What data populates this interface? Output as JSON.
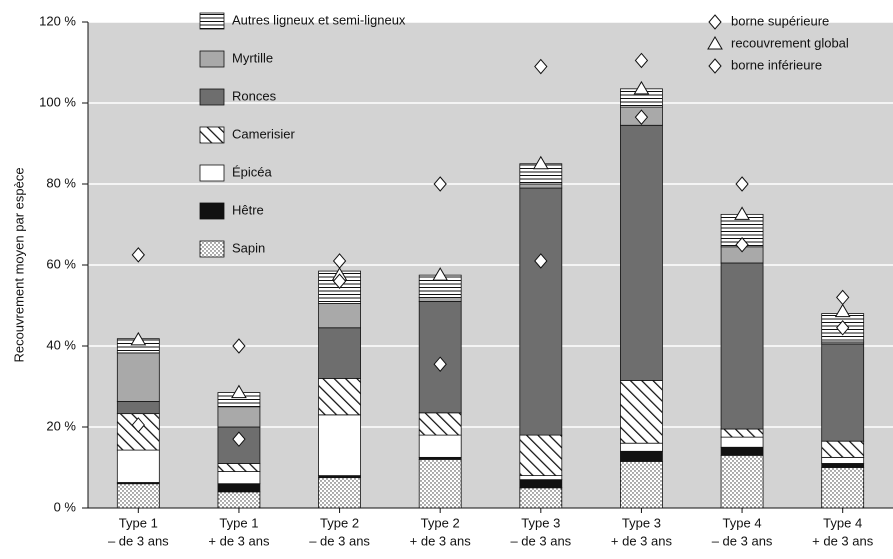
{
  "chart_data": {
    "type": "stacked-bar",
    "y_label": "Recouvrement moyen par espèce",
    "categories": [
      [
        "Type 1",
        "– de 3 ans"
      ],
      [
        "Type 1",
        "+ de 3 ans"
      ],
      [
        "Type 2",
        "– de 3 ans"
      ],
      [
        "Type 2",
        "+ de 3 ans"
      ],
      [
        "Type 3",
        "– de 3 ans"
      ],
      [
        "Type 3",
        "+ de 3 ans"
      ],
      [
        "Type 4",
        "– de 3 ans"
      ],
      [
        "Type 4",
        "+ de 3 ans"
      ]
    ],
    "series": [
      {
        "name": "Sapin",
        "color": "#ffffff",
        "pattern": "dots",
        "values": [
          6,
          4,
          7.5,
          12,
          5,
          11.5,
          13,
          10
        ]
      },
      {
        "name": "Hêtre",
        "color": "#111111",
        "pattern": "solid",
        "values": [
          0.3,
          2,
          0.5,
          0.5,
          2,
          2.5,
          2,
          1
        ]
      },
      {
        "name": "Épicéa",
        "color": "#ffffff",
        "pattern": "solid",
        "values": [
          8,
          3,
          15,
          5.5,
          1,
          2,
          2.5,
          1.5
        ]
      },
      {
        "name": "Camerisier",
        "color": "#ffffff",
        "pattern": "diagonal",
        "values": [
          9,
          2,
          9,
          5.5,
          10,
          15.5,
          2,
          4
        ]
      },
      {
        "name": "Ronces",
        "color": "#6e6e6e",
        "pattern": "solid",
        "values": [
          3,
          9,
          12.5,
          27.5,
          61,
          63,
          41,
          24
        ]
      },
      {
        "name": "Myrtille",
        "color": "#a9a9a9",
        "pattern": "solid",
        "values": [
          12,
          5,
          6,
          1,
          1,
          4.5,
          4,
          0.5
        ]
      },
      {
        "name": "Autres ligneux et semi-ligneux",
        "color": "#ffffff",
        "pattern": "hlines",
        "values": [
          3.5,
          3.5,
          8,
          5.5,
          5,
          4.5,
          8,
          7
        ]
      }
    ],
    "markers": [
      {
        "name": "borne supérieure",
        "symbol": "diamond",
        "values": [
          62.5,
          40,
          61,
          80,
          109,
          110.5,
          80,
          52
        ]
      },
      {
        "name": "recouvrement global",
        "symbol": "triangle",
        "values": [
          41.5,
          28.5,
          57.5,
          57.5,
          85,
          103.5,
          72.5,
          48.5
        ]
      },
      {
        "name": "borne inférieure",
        "symbol": "diamond",
        "values": [
          20.5,
          17,
          56,
          35.5,
          61,
          96.5,
          65,
          44.5
        ]
      }
    ],
    "ylim": [
      0,
      120
    ],
    "yticks": [
      {
        "value": 0,
        "label": "0 %"
      },
      {
        "value": 20,
        "label": "20 %"
      },
      {
        "value": 40,
        "label": "40 %"
      },
      {
        "value": 60,
        "label": "60 %"
      },
      {
        "value": 80,
        "label": "80 %"
      },
      {
        "value": 100,
        "label": "100 %"
      },
      {
        "value": 120,
        "label": "120 %"
      }
    ],
    "grid": true
  }
}
